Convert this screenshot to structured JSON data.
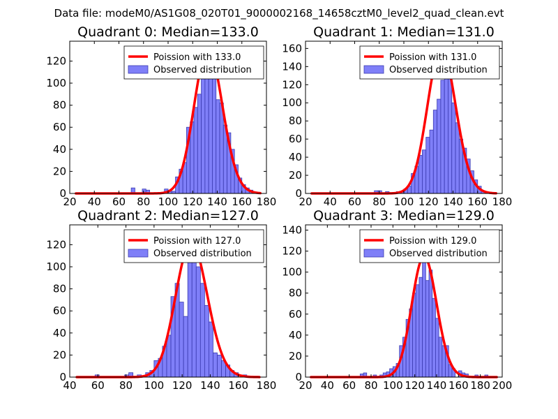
{
  "suptitle": "Data file: modeM0/AS1G08_020T01_9000002168_14658cztM0_level2_quad_clean.evt",
  "colors": {
    "hist_fill": "#7f7ff8",
    "hist_edge": "#3a3ab0",
    "poisson_line": "#ff0000",
    "legend_edge": "#000000"
  },
  "chart_data": [
    {
      "type": "bar",
      "title": "Quadrant 0: Median=133.0",
      "median": 133.0,
      "xlim": [
        20,
        180
      ],
      "ylim": [
        0,
        138
      ],
      "xticks": [
        20,
        40,
        60,
        80,
        100,
        120,
        140,
        160,
        180
      ],
      "yticks": [
        0,
        20,
        40,
        60,
        80,
        100,
        120
      ],
      "bin_width": 3,
      "bins": [
        [
          70,
          5
        ],
        [
          79,
          4
        ],
        [
          82,
          3
        ],
        [
          94,
          1
        ],
        [
          97,
          4
        ],
        [
          100,
          2
        ],
        [
          103,
          2
        ],
        [
          106,
          15
        ],
        [
          109,
          22
        ],
        [
          112,
          28
        ],
        [
          115,
          60
        ],
        [
          118,
          65
        ],
        [
          121,
          78
        ],
        [
          124,
          90
        ],
        [
          127,
          107
        ],
        [
          130,
          110
        ],
        [
          133,
          131
        ],
        [
          136,
          105
        ],
        [
          139,
          85
        ],
        [
          142,
          82
        ],
        [
          145,
          62
        ],
        [
          148,
          55
        ],
        [
          151,
          40
        ],
        [
          154,
          26
        ],
        [
          157,
          14
        ],
        [
          160,
          8
        ],
        [
          163,
          5
        ],
        [
          166,
          3
        ]
      ],
      "series": [
        {
          "name": "Poission with 133.0",
          "kind": "line"
        },
        {
          "name": "Observed distribution",
          "kind": "hist"
        }
      ],
      "legend": "top-right"
    },
    {
      "type": "bar",
      "title": "Quadrant 1: Median=131.0",
      "median": 131.0,
      "xlim": [
        20,
        180
      ],
      "ylim": [
        0,
        168
      ],
      "xticks": [
        20,
        40,
        60,
        80,
        100,
        120,
        140,
        160,
        180
      ],
      "yticks": [
        0,
        20,
        40,
        60,
        80,
        100,
        120,
        140,
        160
      ],
      "bin_width": 3,
      "bins": [
        [
          76,
          3
        ],
        [
          79,
          3
        ],
        [
          85,
          2
        ],
        [
          94,
          2
        ],
        [
          97,
          2
        ],
        [
          100,
          5
        ],
        [
          103,
          8
        ],
        [
          106,
          22
        ],
        [
          109,
          30
        ],
        [
          112,
          42
        ],
        [
          115,
          48
        ],
        [
          118,
          62
        ],
        [
          121,
          70
        ],
        [
          124,
          92
        ],
        [
          127,
          104
        ],
        [
          130,
          125
        ],
        [
          133,
          160
        ],
        [
          136,
          130
        ],
        [
          139,
          100
        ],
        [
          142,
          78
        ],
        [
          145,
          60
        ],
        [
          148,
          50
        ],
        [
          151,
          38
        ],
        [
          154,
          25
        ],
        [
          157,
          15
        ],
        [
          160,
          8
        ],
        [
          163,
          3
        ]
      ],
      "series": [
        {
          "name": "Poission with 131.0",
          "kind": "line"
        },
        {
          "name": "Observed distribution",
          "kind": "hist"
        }
      ],
      "legend": "top-right"
    },
    {
      "type": "bar",
      "title": "Quadrant 2: Median=127.0",
      "median": 127.0,
      "xlim": [
        40,
        180
      ],
      "ylim": [
        0,
        138
      ],
      "xticks": [
        40,
        60,
        80,
        100,
        120,
        140,
        160,
        180
      ],
      "yticks": [
        0,
        20,
        40,
        60,
        80,
        100,
        120
      ],
      "bin_width": 3,
      "bins": [
        [
          58,
          2
        ],
        [
          79,
          2
        ],
        [
          82,
          4
        ],
        [
          88,
          2
        ],
        [
          94,
          4
        ],
        [
          97,
          6
        ],
        [
          100,
          15
        ],
        [
          103,
          17
        ],
        [
          106,
          28
        ],
        [
          109,
          38
        ],
        [
          112,
          73
        ],
        [
          115,
          85
        ],
        [
          118,
          68
        ],
        [
          121,
          55
        ],
        [
          124,
          110
        ],
        [
          127,
          122
        ],
        [
          130,
          100
        ],
        [
          133,
          85
        ],
        [
          136,
          65
        ],
        [
          139,
          50
        ],
        [
          142,
          22
        ],
        [
          145,
          20
        ],
        [
          148,
          15
        ],
        [
          151,
          11
        ],
        [
          154,
          6
        ],
        [
          157,
          4
        ],
        [
          163,
          2
        ]
      ],
      "series": [
        {
          "name": "Poission with 127.0",
          "kind": "line"
        },
        {
          "name": "Observed distribution",
          "kind": "hist"
        }
      ],
      "legend": "top-right"
    },
    {
      "type": "bar",
      "title": "Quadrant 3: Median=129.0",
      "median": 129.0,
      "xlim": [
        20,
        200
      ],
      "ylim": [
        0,
        145
      ],
      "xticks": [
        20,
        40,
        60,
        80,
        100,
        120,
        140,
        160,
        180,
        200
      ],
      "yticks": [
        0,
        20,
        40,
        60,
        80,
        100,
        120,
        140
      ],
      "bin_width": 3,
      "bins": [
        [
          70,
          3
        ],
        [
          73,
          4
        ],
        [
          82,
          2
        ],
        [
          88,
          2
        ],
        [
          91,
          4
        ],
        [
          94,
          5
        ],
        [
          97,
          8
        ],
        [
          100,
          10
        ],
        [
          103,
          13
        ],
        [
          106,
          30
        ],
        [
          109,
          38
        ],
        [
          112,
          55
        ],
        [
          115,
          65
        ],
        [
          118,
          80
        ],
        [
          121,
          88
        ],
        [
          124,
          95
        ],
        [
          127,
          115
        ],
        [
          130,
          92
        ],
        [
          133,
          102
        ],
        [
          136,
          75
        ],
        [
          139,
          56
        ],
        [
          142,
          38
        ],
        [
          145,
          30
        ],
        [
          148,
          30
        ],
        [
          151,
          12
        ],
        [
          154,
          8
        ],
        [
          160,
          6
        ],
        [
          163,
          4
        ],
        [
          166,
          3
        ],
        [
          175,
          2
        ],
        [
          184,
          2
        ]
      ],
      "series": [
        {
          "name": "Poission with 129.0",
          "kind": "line"
        },
        {
          "name": "Observed distribution",
          "kind": "hist"
        }
      ],
      "legend": "top-right"
    }
  ]
}
